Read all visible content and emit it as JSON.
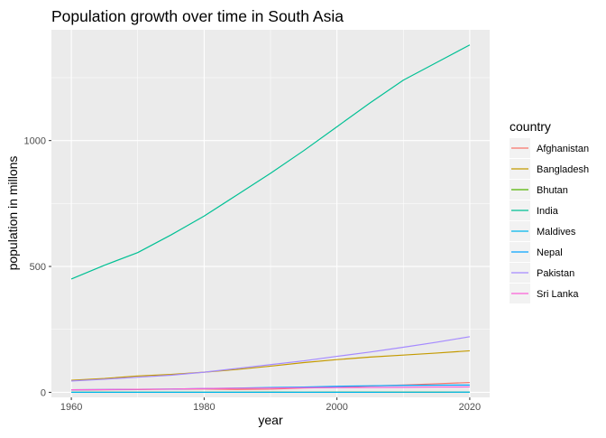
{
  "chart_data": {
    "type": "line",
    "title": "Population growth over time in South Asia",
    "xlabel": "year",
    "ylabel": "population in millons",
    "xlim": [
      1957,
      2023
    ],
    "ylim": [
      -20,
      1440
    ],
    "x_ticks": [
      1960,
      1980,
      2000,
      2020
    ],
    "y_ticks": [
      0,
      500,
      1000
    ],
    "grid": true,
    "legend_title": "country",
    "legend_position": "right",
    "x": [
      1960,
      1965,
      1970,
      1975,
      1980,
      1985,
      1990,
      1995,
      2000,
      2005,
      2010,
      2015,
      2020
    ],
    "series": [
      {
        "name": "Afghanistan",
        "color": "#F8766D",
        "values": [
          9,
          10,
          11,
          12.5,
          13,
          11.5,
          12.5,
          17,
          20,
          25,
          29,
          34,
          39
        ]
      },
      {
        "name": "Bangladesh",
        "color": "#C49A00",
        "values": [
          48,
          55,
          65,
          71,
          80,
          91,
          104,
          118,
          130,
          140,
          148,
          156,
          165
        ]
      },
      {
        "name": "Bhutan",
        "color": "#53B400",
        "values": [
          0.2,
          0.25,
          0.3,
          0.35,
          0.4,
          0.45,
          0.55,
          0.5,
          0.6,
          0.65,
          0.7,
          0.75,
          0.8
        ]
      },
      {
        "name": "India",
        "color": "#00C094",
        "values": [
          450,
          505,
          555,
          625,
          700,
          785,
          870,
          960,
          1055,
          1150,
          1240,
          1310,
          1380
        ]
      },
      {
        "name": "Maldives",
        "color": "#00B6EB",
        "values": [
          0.1,
          0.1,
          0.12,
          0.14,
          0.16,
          0.19,
          0.22,
          0.25,
          0.28,
          0.31,
          0.37,
          0.42,
          0.54
        ]
      },
      {
        "name": "Nepal",
        "color": "#06A4FF",
        "values": [
          10,
          11,
          12,
          13,
          15,
          17,
          19,
          21,
          24,
          26,
          27.5,
          28.5,
          29
        ]
      },
      {
        "name": "Pakistan",
        "color": "#A58AFF",
        "values": [
          45,
          52,
          60,
          68,
          80,
          95,
          110,
          125,
          143,
          160,
          179,
          199,
          221
        ]
      },
      {
        "name": "Sri Lanka",
        "color": "#FB61D7",
        "values": [
          10,
          11,
          12,
          13,
          15,
          16,
          17,
          18,
          19,
          19.5,
          20,
          21,
          21.5
        ]
      }
    ]
  }
}
